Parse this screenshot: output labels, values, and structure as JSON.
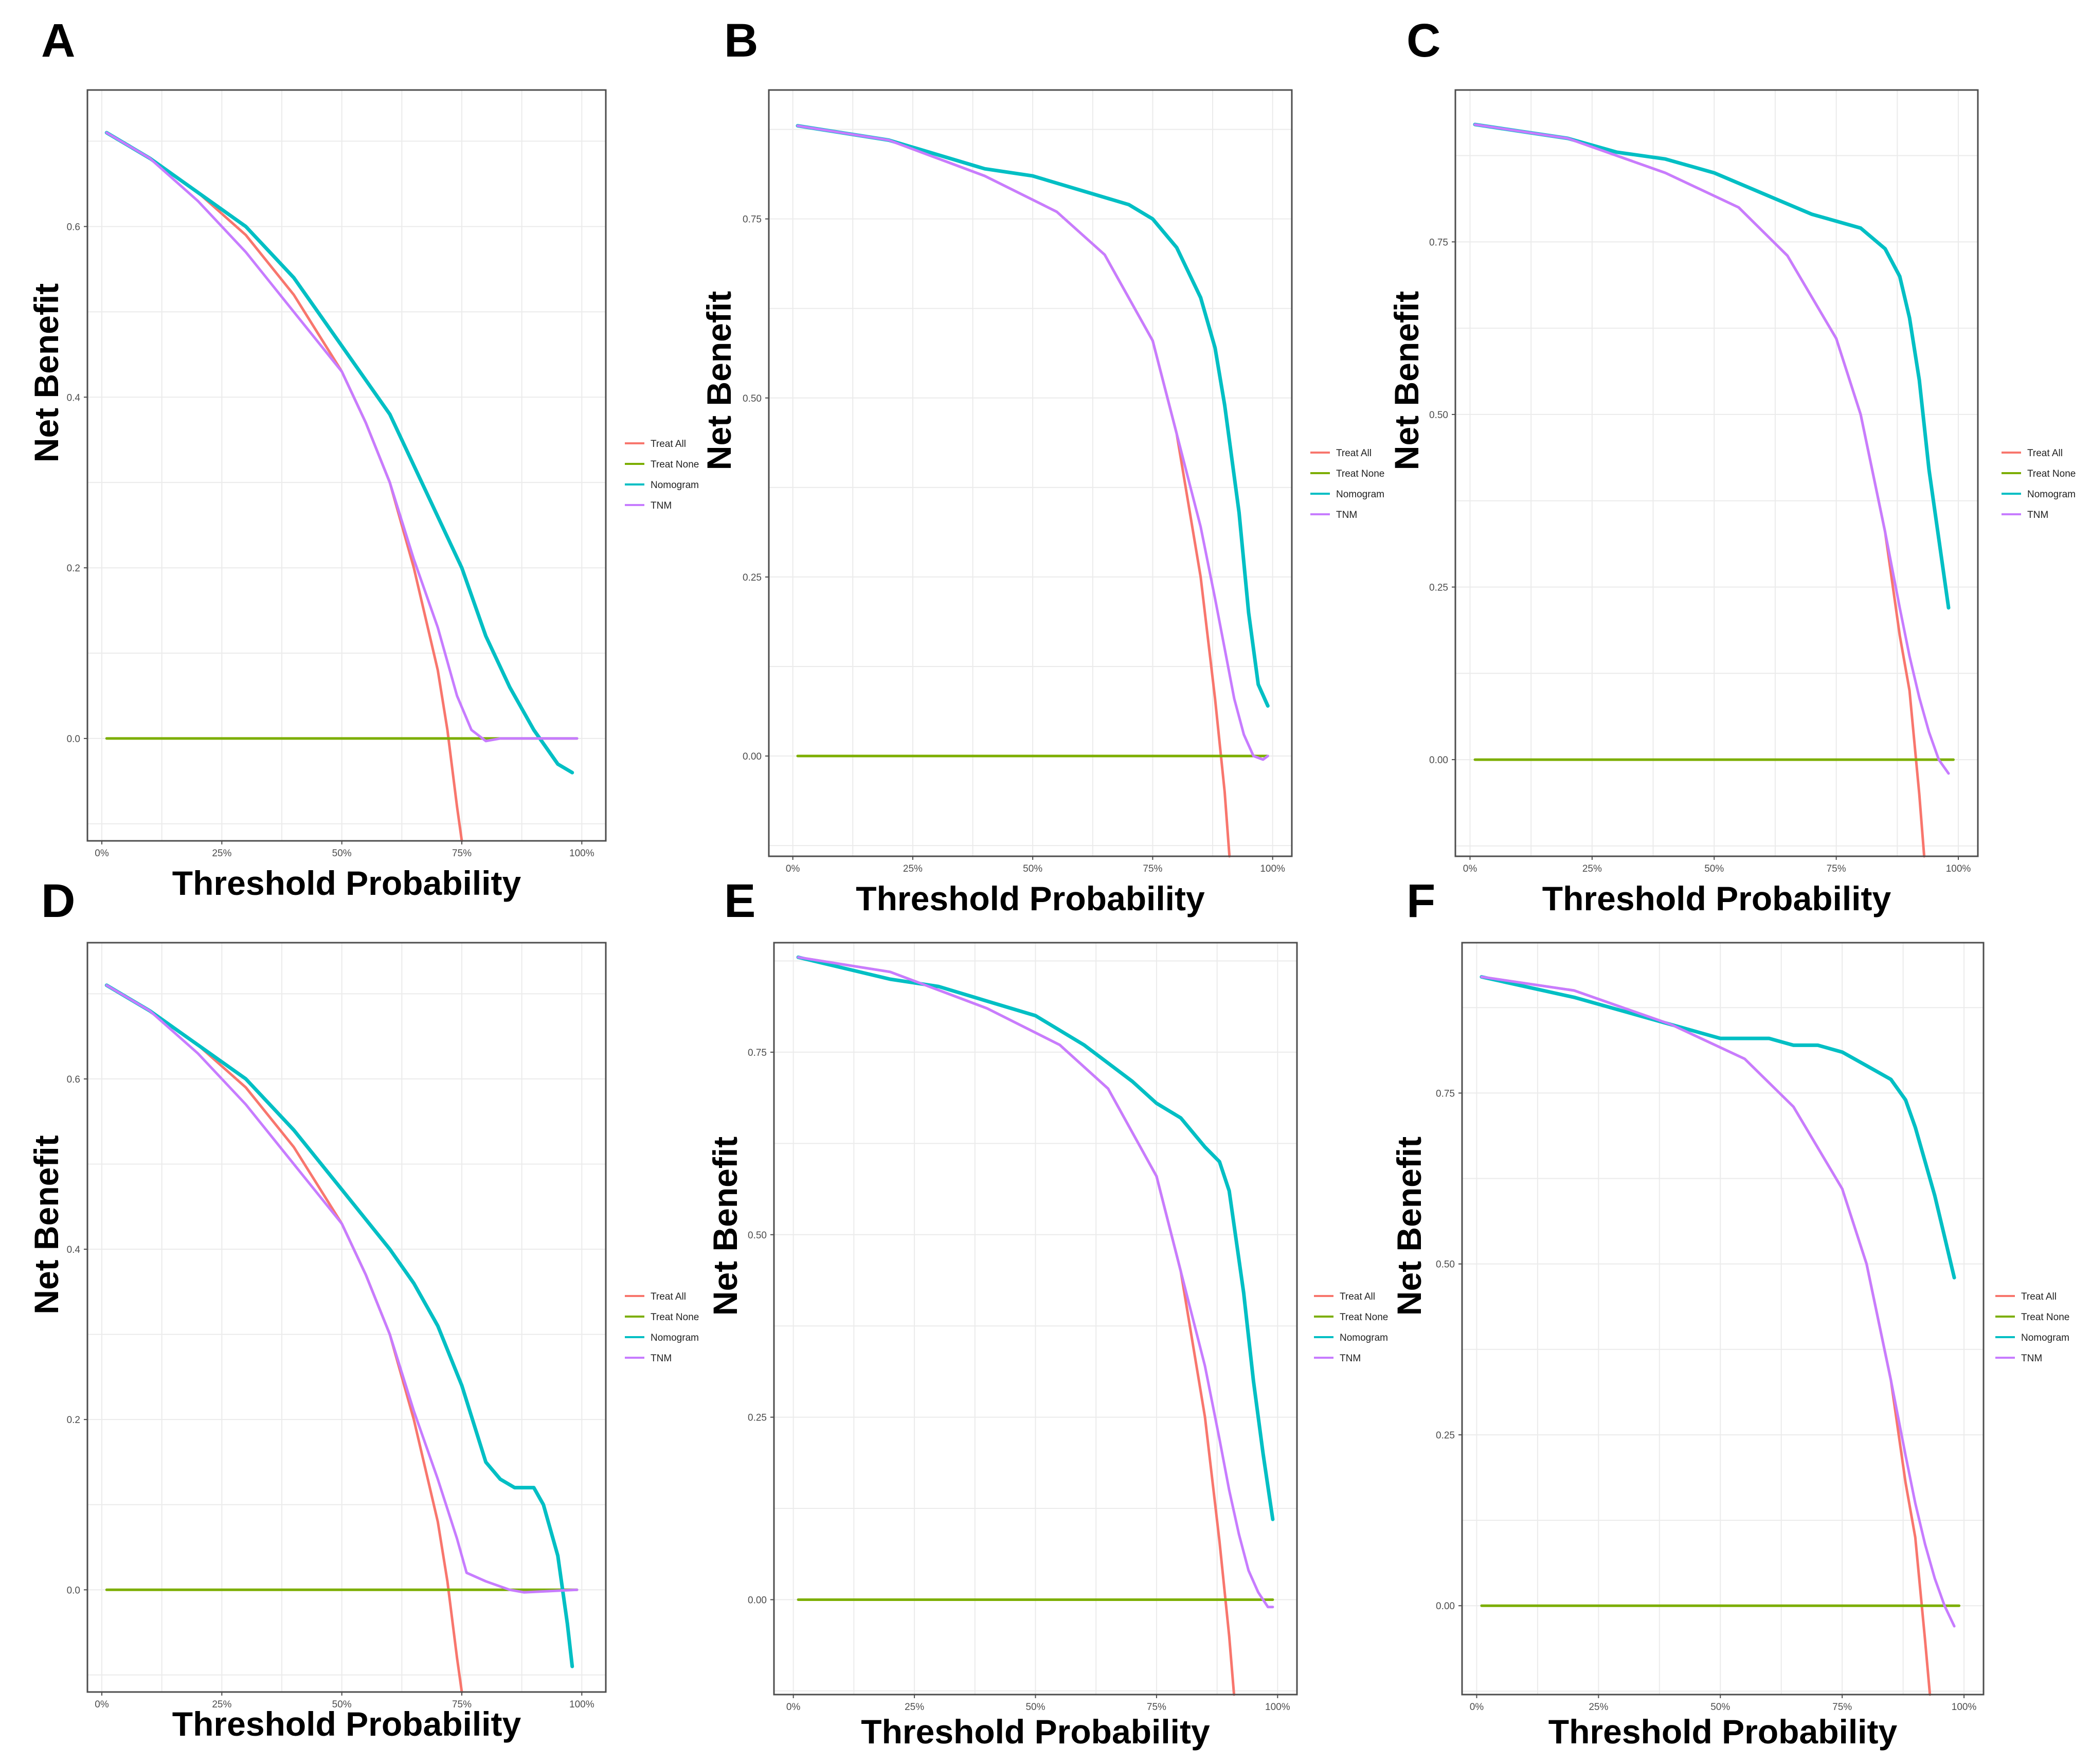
{
  "series_colors": {
    "Treat All": "#f8766d",
    "Treat None": "#7cae00",
    "Nomogram": "#00bfc4",
    "TNM": "#c77cff"
  },
  "chart_data": [
    {
      "panel": "A",
      "type": "line",
      "xlabel": "Threshold Probability",
      "ylabel": "Net Benefit",
      "xlim": [
        -0.03,
        1.05
      ],
      "ylim": [
        -0.12,
        0.76
      ],
      "xticks": [
        0,
        0.25,
        0.5,
        0.75,
        1.0
      ],
      "xtick_labels": [
        "0%",
        "25%",
        "50%",
        "75%",
        "100%"
      ],
      "yticks": [
        0,
        0.2,
        0.4,
        0.6
      ],
      "ytick_labels": [
        "0.0",
        "0.2",
        "0.4",
        "0.6"
      ],
      "grid": true,
      "legend_position": "right",
      "legend": [
        "Treat All",
        "Treat None",
        "Nomogram",
        "TNM"
      ],
      "series": [
        {
          "name": "Treat All",
          "x": [
            0.01,
            0.1,
            0.2,
            0.3,
            0.4,
            0.5,
            0.55,
            0.6,
            0.65,
            0.7,
            0.72,
            0.74,
            0.75
          ],
          "y": [
            0.71,
            0.68,
            0.64,
            0.59,
            0.52,
            0.43,
            0.37,
            0.3,
            0.2,
            0.08,
            0.01,
            -0.08,
            -0.12
          ]
        },
        {
          "name": "Treat None",
          "x": [
            0.01,
            0.99
          ],
          "y": [
            0,
            0
          ]
        },
        {
          "name": "Nomogram",
          "x": [
            0.01,
            0.1,
            0.2,
            0.3,
            0.4,
            0.5,
            0.6,
            0.7,
            0.75,
            0.8,
            0.85,
            0.9,
            0.95,
            0.98
          ],
          "y": [
            0.71,
            0.68,
            0.64,
            0.6,
            0.54,
            0.46,
            0.38,
            0.26,
            0.2,
            0.12,
            0.06,
            0.01,
            -0.03,
            -0.04
          ]
        },
        {
          "name": "TNM",
          "x": [
            0.01,
            0.1,
            0.2,
            0.3,
            0.4,
            0.5,
            0.55,
            0.6,
            0.65,
            0.7,
            0.74,
            0.77,
            0.8,
            0.83,
            0.86,
            0.99
          ],
          "y": [
            0.71,
            0.68,
            0.63,
            0.57,
            0.5,
            0.43,
            0.37,
            0.3,
            0.21,
            0.13,
            0.05,
            0.01,
            -0.003,
            0.0,
            0.0,
            0.0
          ]
        }
      ]
    },
    {
      "panel": "B",
      "type": "line",
      "xlabel": "Threshold Probability",
      "ylabel": "Net Benefit",
      "xlim": [
        -0.05,
        1.04
      ],
      "ylim": [
        -0.14,
        0.93
      ],
      "xticks": [
        0,
        0.25,
        0.5,
        0.75,
        1.0
      ],
      "xtick_labels": [
        "0%",
        "25%",
        "50%",
        "75%",
        "100%"
      ],
      "yticks": [
        0,
        0.25,
        0.5,
        0.75
      ],
      "ytick_labels": [
        "0.00",
        "0.25",
        "0.50",
        "0.75"
      ],
      "grid": true,
      "legend_position": "right",
      "legend": [
        "Treat All",
        "Treat None",
        "Nomogram",
        "TNM"
      ],
      "series": [
        {
          "name": "Treat All",
          "x": [
            0.01,
            0.2,
            0.4,
            0.55,
            0.65,
            0.75,
            0.8,
            0.85,
            0.88,
            0.9,
            0.91
          ],
          "y": [
            0.88,
            0.86,
            0.81,
            0.76,
            0.7,
            0.58,
            0.45,
            0.25,
            0.08,
            -0.05,
            -0.14
          ]
        },
        {
          "name": "Treat None",
          "x": [
            0.01,
            0.99
          ],
          "y": [
            0,
            0
          ]
        },
        {
          "name": "Nomogram",
          "x": [
            0.01,
            0.2,
            0.4,
            0.5,
            0.6,
            0.7,
            0.75,
            0.8,
            0.85,
            0.88,
            0.9,
            0.93,
            0.95,
            0.97,
            0.99
          ],
          "y": [
            0.88,
            0.86,
            0.82,
            0.81,
            0.79,
            0.77,
            0.75,
            0.71,
            0.64,
            0.57,
            0.49,
            0.34,
            0.2,
            0.1,
            0.07
          ]
        },
        {
          "name": "TNM",
          "x": [
            0.01,
            0.2,
            0.4,
            0.55,
            0.65,
            0.75,
            0.8,
            0.85,
            0.88,
            0.9,
            0.92,
            0.94,
            0.96,
            0.98,
            0.99
          ],
          "y": [
            0.88,
            0.86,
            0.81,
            0.76,
            0.7,
            0.58,
            0.45,
            0.32,
            0.22,
            0.15,
            0.08,
            0.03,
            0.0,
            -0.005,
            0.0
          ]
        }
      ]
    },
    {
      "panel": "C",
      "type": "line",
      "xlabel": "Threshold Probability",
      "ylabel": "Net Benefit",
      "xlim": [
        -0.03,
        1.04
      ],
      "ylim": [
        -0.14,
        0.97
      ],
      "xticks": [
        0,
        0.25,
        0.5,
        0.75,
        1.0
      ],
      "xtick_labels": [
        "0%",
        "25%",
        "50%",
        "75%",
        "100%"
      ],
      "yticks": [
        0,
        0.25,
        0.5,
        0.75
      ],
      "ytick_labels": [
        "0.00",
        "0.25",
        "0.50",
        "0.75"
      ],
      "grid": true,
      "legend_position": "right",
      "legend": [
        "Treat All",
        "Treat None",
        "Nomogram",
        "TNM"
      ],
      "series": [
        {
          "name": "Treat All",
          "x": [
            0.01,
            0.2,
            0.4,
            0.55,
            0.65,
            0.75,
            0.8,
            0.85,
            0.88,
            0.9,
            0.92,
            0.93
          ],
          "y": [
            0.92,
            0.9,
            0.85,
            0.8,
            0.73,
            0.61,
            0.5,
            0.33,
            0.18,
            0.1,
            -0.05,
            -0.14
          ]
        },
        {
          "name": "Treat None",
          "x": [
            0.01,
            0.99
          ],
          "y": [
            0,
            0
          ]
        },
        {
          "name": "Nomogram",
          "x": [
            0.01,
            0.2,
            0.3,
            0.4,
            0.5,
            0.6,
            0.7,
            0.75,
            0.8,
            0.85,
            0.88,
            0.9,
            0.92,
            0.94,
            0.96,
            0.98
          ],
          "y": [
            0.92,
            0.9,
            0.88,
            0.87,
            0.85,
            0.82,
            0.79,
            0.78,
            0.77,
            0.74,
            0.7,
            0.64,
            0.55,
            0.42,
            0.32,
            0.22
          ]
        },
        {
          "name": "TNM",
          "x": [
            0.01,
            0.2,
            0.4,
            0.55,
            0.65,
            0.75,
            0.8,
            0.85,
            0.88,
            0.9,
            0.92,
            0.94,
            0.96,
            0.98
          ],
          "y": [
            0.92,
            0.9,
            0.85,
            0.8,
            0.73,
            0.61,
            0.5,
            0.33,
            0.22,
            0.15,
            0.09,
            0.04,
            0.0,
            -0.02
          ]
        }
      ]
    },
    {
      "panel": "D",
      "type": "line",
      "xlabel": "Threshold Probability",
      "ylabel": "Net Benefit",
      "xlim": [
        -0.03,
        1.05
      ],
      "ylim": [
        -0.12,
        0.76
      ],
      "xticks": [
        0,
        0.25,
        0.5,
        0.75,
        1.0
      ],
      "xtick_labels": [
        "0%",
        "25%",
        "50%",
        "75%",
        "100%"
      ],
      "yticks": [
        0,
        0.2,
        0.4,
        0.6
      ],
      "ytick_labels": [
        "0.0",
        "0.2",
        "0.4",
        "0.6"
      ],
      "grid": true,
      "legend_position": "right",
      "legend": [
        "Treat All",
        "Treat None",
        "Nomogram",
        "TNM"
      ],
      "series": [
        {
          "name": "Treat All",
          "x": [
            0.01,
            0.1,
            0.2,
            0.3,
            0.4,
            0.5,
            0.55,
            0.6,
            0.65,
            0.7,
            0.72,
            0.74,
            0.75
          ],
          "y": [
            0.71,
            0.68,
            0.64,
            0.59,
            0.52,
            0.43,
            0.37,
            0.3,
            0.2,
            0.08,
            0.01,
            -0.08,
            -0.12
          ]
        },
        {
          "name": "Treat None",
          "x": [
            0.01,
            0.99
          ],
          "y": [
            0,
            0
          ]
        },
        {
          "name": "Nomogram",
          "x": [
            0.01,
            0.1,
            0.2,
            0.3,
            0.4,
            0.5,
            0.6,
            0.65,
            0.7,
            0.75,
            0.8,
            0.83,
            0.86,
            0.88,
            0.9,
            0.92,
            0.95,
            0.97,
            0.98
          ],
          "y": [
            0.71,
            0.68,
            0.64,
            0.6,
            0.54,
            0.47,
            0.4,
            0.36,
            0.31,
            0.24,
            0.15,
            0.13,
            0.12,
            0.12,
            0.12,
            0.1,
            0.04,
            -0.04,
            -0.09
          ]
        },
        {
          "name": "TNM",
          "x": [
            0.01,
            0.1,
            0.2,
            0.3,
            0.4,
            0.5,
            0.55,
            0.6,
            0.65,
            0.7,
            0.74,
            0.76,
            0.8,
            0.85,
            0.88,
            0.99
          ],
          "y": [
            0.71,
            0.68,
            0.63,
            0.57,
            0.5,
            0.43,
            0.37,
            0.3,
            0.21,
            0.13,
            0.06,
            0.02,
            0.01,
            0.0,
            -0.003,
            0.0
          ]
        }
      ]
    },
    {
      "panel": "E",
      "type": "line",
      "xlabel": "Threshold Probability",
      "ylabel": "Net Benefit",
      "xlim": [
        -0.04,
        1.04
      ],
      "ylim": [
        -0.13,
        0.9
      ],
      "xticks": [
        0,
        0.25,
        0.5,
        0.75,
        1.0
      ],
      "xtick_labels": [
        "0%",
        "25%",
        "50%",
        "75%",
        "100%"
      ],
      "yticks": [
        0,
        0.25,
        0.5,
        0.75
      ],
      "ytick_labels": [
        "0.00",
        "0.25",
        "0.50",
        "0.75"
      ],
      "grid": true,
      "legend_position": "right",
      "legend": [
        "Treat All",
        "Treat None",
        "Nomogram",
        "TNM"
      ],
      "series": [
        {
          "name": "Treat All",
          "x": [
            0.01,
            0.2,
            0.4,
            0.55,
            0.65,
            0.75,
            0.8,
            0.85,
            0.88,
            0.9,
            0.91
          ],
          "y": [
            0.88,
            0.86,
            0.81,
            0.76,
            0.7,
            0.58,
            0.45,
            0.25,
            0.08,
            -0.05,
            -0.13
          ]
        },
        {
          "name": "Treat None",
          "x": [
            0.01,
            0.99
          ],
          "y": [
            0,
            0
          ]
        },
        {
          "name": "Nomogram",
          "x": [
            0.01,
            0.2,
            0.3,
            0.4,
            0.5,
            0.6,
            0.7,
            0.75,
            0.8,
            0.85,
            0.88,
            0.9,
            0.93,
            0.95,
            0.97,
            0.99
          ],
          "y": [
            0.88,
            0.85,
            0.84,
            0.82,
            0.8,
            0.76,
            0.71,
            0.68,
            0.66,
            0.62,
            0.6,
            0.56,
            0.42,
            0.3,
            0.2,
            0.11
          ]
        },
        {
          "name": "TNM",
          "x": [
            0.01,
            0.2,
            0.4,
            0.55,
            0.65,
            0.75,
            0.8,
            0.85,
            0.88,
            0.9,
            0.92,
            0.94,
            0.96,
            0.98,
            0.99
          ],
          "y": [
            0.88,
            0.86,
            0.81,
            0.76,
            0.7,
            0.58,
            0.45,
            0.32,
            0.22,
            0.15,
            0.09,
            0.04,
            0.01,
            -0.01,
            -0.01
          ]
        }
      ]
    },
    {
      "panel": "F",
      "type": "line",
      "xlabel": "Threshold Probability",
      "ylabel": "Net Benefit",
      "xlim": [
        -0.03,
        1.04
      ],
      "ylim": [
        -0.13,
        0.97
      ],
      "xticks": [
        0,
        0.25,
        0.5,
        0.75,
        1.0
      ],
      "xtick_labels": [
        "0%",
        "25%",
        "50%",
        "75%",
        "100%"
      ],
      "yticks": [
        0,
        0.25,
        0.5,
        0.75
      ],
      "ytick_labels": [
        "0.00",
        "0.25",
        "0.50",
        "0.75"
      ],
      "grid": true,
      "legend_position": "right",
      "legend": [
        "Treat All",
        "Treat None",
        "Nomogram",
        "TNM"
      ],
      "series": [
        {
          "name": "Treat All",
          "x": [
            0.01,
            0.2,
            0.4,
            0.55,
            0.65,
            0.75,
            0.8,
            0.85,
            0.88,
            0.9,
            0.92,
            0.93
          ],
          "y": [
            0.92,
            0.9,
            0.85,
            0.8,
            0.73,
            0.61,
            0.5,
            0.33,
            0.18,
            0.1,
            -0.05,
            -0.13
          ]
        },
        {
          "name": "Treat None",
          "x": [
            0.01,
            0.99
          ],
          "y": [
            0,
            0
          ]
        },
        {
          "name": "Nomogram",
          "x": [
            0.01,
            0.2,
            0.3,
            0.4,
            0.5,
            0.6,
            0.65,
            0.7,
            0.75,
            0.8,
            0.85,
            0.88,
            0.9,
            0.92,
            0.94,
            0.96,
            0.98
          ],
          "y": [
            0.92,
            0.89,
            0.87,
            0.85,
            0.83,
            0.83,
            0.82,
            0.82,
            0.81,
            0.79,
            0.77,
            0.74,
            0.7,
            0.65,
            0.6,
            0.54,
            0.48
          ]
        },
        {
          "name": "TNM",
          "x": [
            0.01,
            0.2,
            0.4,
            0.55,
            0.65,
            0.75,
            0.8,
            0.85,
            0.88,
            0.9,
            0.92,
            0.94,
            0.96,
            0.98
          ],
          "y": [
            0.92,
            0.9,
            0.85,
            0.8,
            0.73,
            0.61,
            0.5,
            0.33,
            0.22,
            0.15,
            0.09,
            0.04,
            0.0,
            -0.03
          ]
        }
      ]
    }
  ]
}
